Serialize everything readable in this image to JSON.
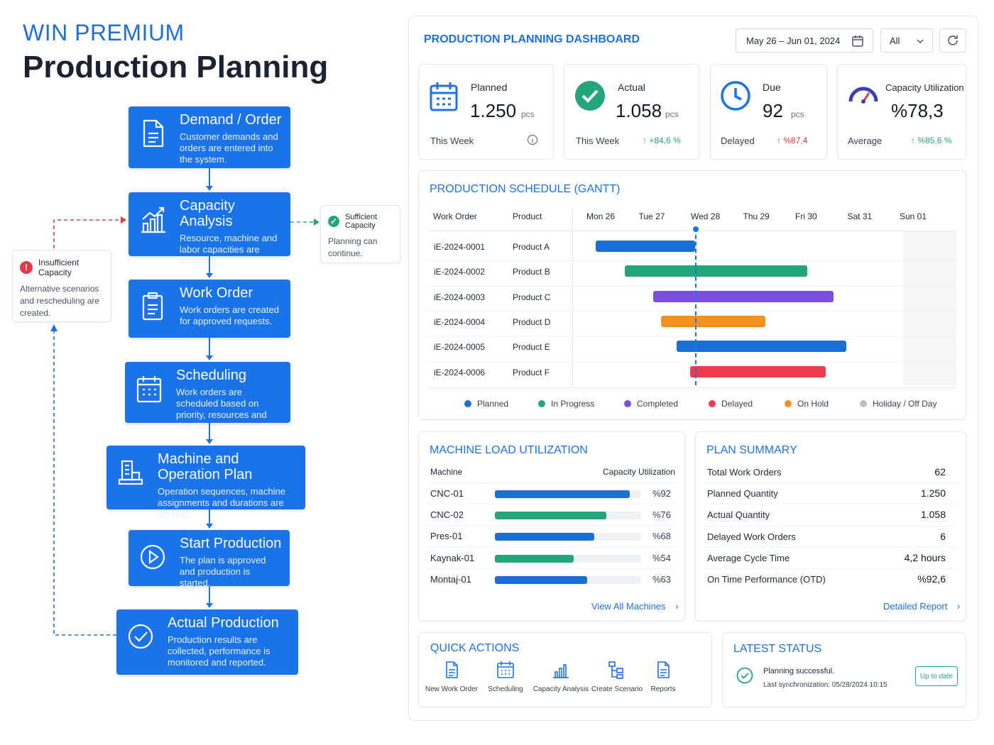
{
  "brand": "WIN PREMIUM",
  "title": "Production Planning",
  "flow": {
    "steps": [
      {
        "title": "Demand / Order",
        "desc": "Customer demands and orders are entered into the system."
      },
      {
        "title": "Capacity Analysis",
        "desc": "Resource, machine and labor capacities are analyzed."
      },
      {
        "title": "Work Order",
        "desc": "Work orders are created for approved requests."
      },
      {
        "title": "Scheduling",
        "desc": "Work orders are scheduled based on priority, resources and due dates."
      },
      {
        "title": "Machine and Operation Plan",
        "desc": "Operation sequences, machine assignments and durations are defined."
      },
      {
        "title": "Start Production",
        "desc": "The plan is approved and production is started."
      },
      {
        "title": "Actual Production",
        "desc": "Production results are collected, performance is monitored and reported."
      }
    ],
    "insufficient": {
      "title": "Insufficient Capacity",
      "desc": "Alternative scenarios and rescheduling are created."
    },
    "sufficient": {
      "title": "Sufficient Capacity",
      "desc": "Planning can continue."
    }
  },
  "dashboard": {
    "title": "PRODUCTION PLANNING DASHBOARD",
    "date_range": "May 26 – Jun 01, 2024",
    "filter": "All",
    "kpis": [
      {
        "label": "Planned",
        "value": "1.250",
        "unit": "pcs",
        "foot": "This Week",
        "delta": ""
      },
      {
        "label": "Actual",
        "value": "1.058",
        "unit": "pcs",
        "foot": "This Week",
        "delta": "+84,6 %"
      },
      {
        "label": "Due",
        "value": "92",
        "unit": "pcs",
        "foot": "Delayed",
        "delta": "%87,4"
      },
      {
        "label": "Capacity Utilization",
        "value": "%78,3",
        "unit": "",
        "foot": "Average",
        "delta": "%85,6 %"
      }
    ],
    "gantt": {
      "title": "PRODUCTION SCHEDULE (GANTT)",
      "col_work_order": "Work Order",
      "col_product": "Product",
      "days": [
        "Mon 26",
        "Tue 27",
        "Wed 28",
        "Thu 29",
        "Fri 30",
        "Sat 31",
        "Sun 01"
      ],
      "rows": [
        {
          "wo": "iE-2024-0001",
          "product": "Product A",
          "start": 0.1,
          "end": 2.0,
          "status": "Planned"
        },
        {
          "wo": "iE-2024-0002",
          "product": "Product B",
          "start": 0.65,
          "end": 4.15,
          "status": "In Progress"
        },
        {
          "wo": "iE-2024-0003",
          "product": "Product C",
          "start": 1.2,
          "end": 4.65,
          "status": "Completed"
        },
        {
          "wo": "iE-2024-0004",
          "product": "Product D",
          "start": 1.35,
          "end": 3.35,
          "status": "On Hold"
        },
        {
          "wo": "iE-2024-0005",
          "product": "Product E",
          "start": 1.65,
          "end": 4.9,
          "status": "Planned"
        },
        {
          "wo": "iE-2024-0006",
          "product": "Product F",
          "start": 1.9,
          "end": 4.5,
          "status": "Delayed"
        }
      ],
      "today_marker": 2.0,
      "legend": [
        {
          "name": "Planned",
          "color": "#1a6fd6"
        },
        {
          "name": "In Progress",
          "color": "#23a77a"
        },
        {
          "name": "Completed",
          "color": "#7b4ee0"
        },
        {
          "name": "Delayed",
          "color": "#ee3b4d"
        },
        {
          "name": "On Hold",
          "color": "#f4901e"
        },
        {
          "name": "Holiday / Off Day",
          "color": "#b8bec6"
        }
      ]
    },
    "machines": {
      "title": "MACHINE LOAD UTILIZATION",
      "col_machine": "Machine",
      "col_util": "Capacity Utilization",
      "rows": [
        {
          "name": "CNC-01",
          "pct_label": "%92",
          "value": 92,
          "color": "#1a6fd6"
        },
        {
          "name": "CNC-02",
          "pct_label": "%76",
          "value": 76,
          "color": "#23a77a"
        },
        {
          "name": "Pres-01",
          "pct_label": "%68",
          "value": 68,
          "color": "#1a6fd6"
        },
        {
          "name": "Kaynak-01",
          "pct_label": "%54",
          "value": 54,
          "color": "#23a77a"
        },
        {
          "name": "Montaj-01",
          "pct_label": "%63",
          "value": 63,
          "color": "#1a6fd6"
        }
      ],
      "link": "View All Machines"
    },
    "summary": {
      "title": "PLAN SUMMARY",
      "rows": [
        {
          "label": "Total Work Orders",
          "value": "62"
        },
        {
          "label": "Planned Quantity",
          "value": "1.250"
        },
        {
          "label": "Actual Quantity",
          "value": "1.058"
        },
        {
          "label": "Delayed Work Orders",
          "value": "6"
        },
        {
          "label": "Average Cycle Time",
          "value": "4,2 hours"
        },
        {
          "label": "On Time Performance (OTD)",
          "value": "%92,6"
        }
      ],
      "link": "Detailed Report"
    },
    "quick_actions": {
      "title": "QUICK ACTIONS",
      "items": [
        "New Work Order",
        "Scheduling",
        "Capacity Analysis",
        "Create Scenario",
        "Reports"
      ]
    },
    "latest": {
      "title": "LATEST STATUS",
      "message": "Planning successful.",
      "sync": "Last synchronization: 05/28/2024 10:15",
      "badge": "Up to date"
    }
  }
}
